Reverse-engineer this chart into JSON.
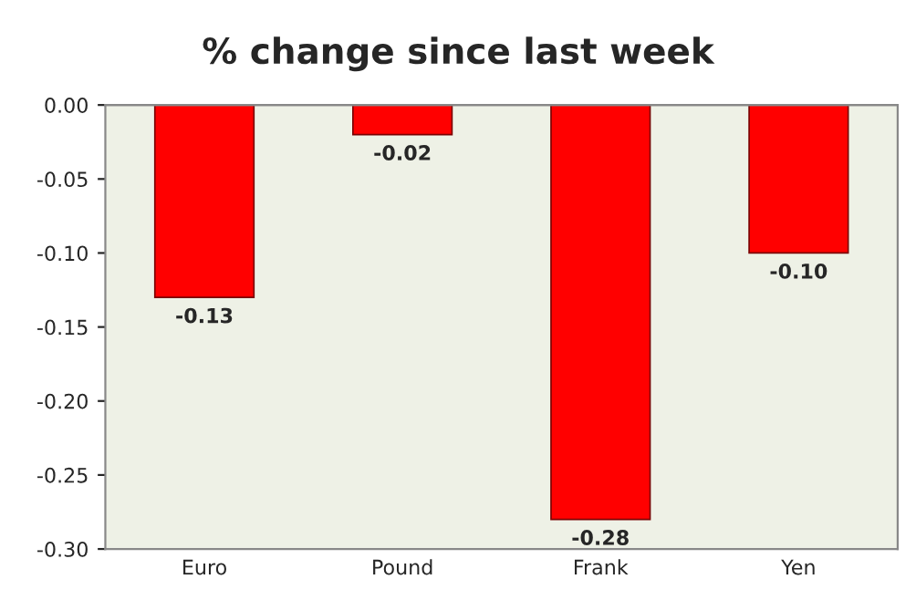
{
  "chart_data": {
    "type": "bar",
    "title": "% change since last week",
    "categories": [
      "Euro",
      "Pound",
      "Frank",
      "Yen"
    ],
    "values": [
      -0.13,
      -0.02,
      -0.28,
      -0.1
    ],
    "value_labels": [
      "-0.13",
      "-0.02",
      "-0.28",
      "-0.10"
    ],
    "color": "#ff0000",
    "ylim": [
      -0.3,
      0.0
    ],
    "yticks": [
      {
        "value": 0.0,
        "label": "0.00"
      },
      {
        "value": -0.05,
        "label": "-0.05"
      },
      {
        "value": -0.1,
        "label": "-0.10"
      },
      {
        "value": -0.15,
        "label": "-0.15"
      },
      {
        "value": -0.2,
        "label": "-0.20"
      },
      {
        "value": -0.25,
        "label": "-0.25"
      },
      {
        "value": -0.3,
        "label": "-0.30"
      }
    ],
    "grid": false,
    "legend": false
  }
}
